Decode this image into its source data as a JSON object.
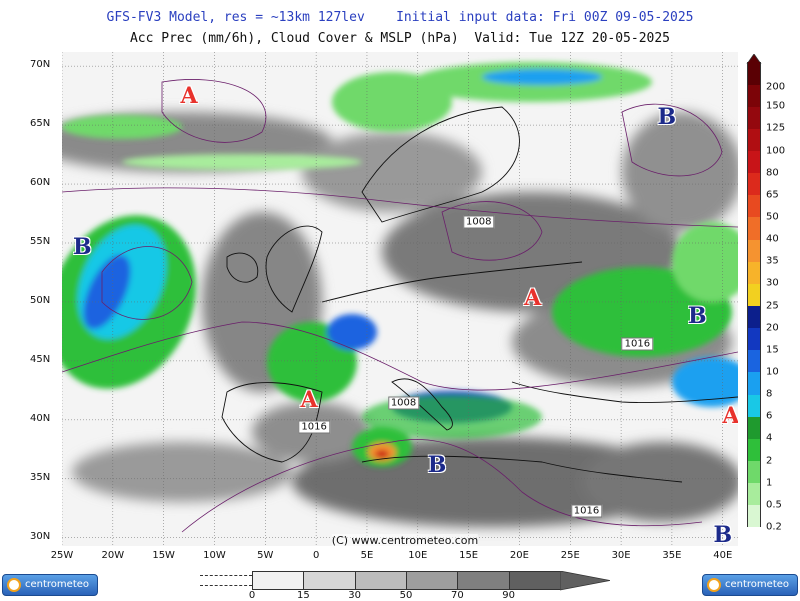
{
  "header": {
    "line1": "GFS-FV3 Model, res = ~13km 127lev    Initial input data: Fri 00Z 09-05-2025",
    "line2": "Acc Prec (mm/6h), Cloud Cover & MSLP (hPa)  Valid: Tue 12Z 20-05-2025"
  },
  "latitudes": [
    {
      "label": "70N",
      "lat": 70
    },
    {
      "label": "65N",
      "lat": 65
    },
    {
      "label": "60N",
      "lat": 60
    },
    {
      "label": "55N",
      "lat": 55
    },
    {
      "label": "50N",
      "lat": 50
    },
    {
      "label": "45N",
      "lat": 45
    },
    {
      "label": "40N",
      "lat": 40
    },
    {
      "label": "35N",
      "lat": 35
    },
    {
      "label": "30N",
      "lat": 30
    }
  ],
  "longitudes": [
    {
      "label": "25W",
      "lon": -25
    },
    {
      "label": "20W",
      "lon": -20
    },
    {
      "label": "15W",
      "lon": -15
    },
    {
      "label": "10W",
      "lon": -10
    },
    {
      "label": "5W",
      "lon": -5
    },
    {
      "label": "0",
      "lon": 0
    },
    {
      "label": "5E",
      "lon": 5
    },
    {
      "label": "10E",
      "lon": 10
    },
    {
      "label": "15E",
      "lon": 15
    },
    {
      "label": "20E",
      "lon": 20
    },
    {
      "label": "25E",
      "lon": 25
    },
    {
      "label": "30E",
      "lon": 30
    },
    {
      "label": "35E",
      "lon": 35
    },
    {
      "label": "40E",
      "lon": 40
    }
  ],
  "pressure_centers": [
    {
      "type": "A",
      "lon": -12.5,
      "lat": 67.5
    },
    {
      "type": "B",
      "lon": 34.5,
      "lat": 65.7
    },
    {
      "type": "B",
      "lon": -23,
      "lat": 54.7
    },
    {
      "type": "A",
      "lon": 21.3,
      "lat": 50.3
    },
    {
      "type": "B",
      "lon": 37.5,
      "lat": 48.8
    },
    {
      "type": "A",
      "lon": -0.7,
      "lat": 41.7
    },
    {
      "type": "A",
      "lon": 40.8,
      "lat": 40.3
    },
    {
      "type": "B",
      "lon": 11.9,
      "lat": 36.2
    },
    {
      "type": "B",
      "lon": 40,
      "lat": 30.2
    }
  ],
  "isobar_labels": [
    {
      "text": "1008",
      "lon": 16,
      "lat": 56.8
    },
    {
      "text": "1016",
      "lon": 31.6,
      "lat": 46.4
    },
    {
      "text": "1008",
      "lon": 8.6,
      "lat": 41.4
    },
    {
      "text": "1016",
      "lon": -0.2,
      "lat": 39.4
    },
    {
      "text": "1016",
      "lon": 26.6,
      "lat": 32.3
    }
  ],
  "copyright": "(C) www.centrometeo.com",
  "precip_scale": {
    "unit": "mm/6h",
    "levels": [
      {
        "label": "0.2",
        "color": "#d9f7d2"
      },
      {
        "label": "0.5",
        "color": "#a8ec9c"
      },
      {
        "label": "1",
        "color": "#6fd96a"
      },
      {
        "label": "2",
        "color": "#2fbf3a"
      },
      {
        "label": "4",
        "color": "#1f9a2e"
      },
      {
        "label": "6",
        "color": "#19c8e6"
      },
      {
        "label": "8",
        "color": "#1aa0f0"
      },
      {
        "label": "10",
        "color": "#1a64e0"
      },
      {
        "label": "15",
        "color": "#1238c0"
      },
      {
        "label": "20",
        "color": "#0c1f8c"
      },
      {
        "label": "25",
        "color": "#f2d020"
      },
      {
        "label": "30",
        "color": "#f7b32a"
      },
      {
        "label": "35",
        "color": "#f59330"
      },
      {
        "label": "40",
        "color": "#f06e28"
      },
      {
        "label": "50",
        "color": "#e84a20"
      },
      {
        "label": "65",
        "color": "#dc2a1c"
      },
      {
        "label": "80",
        "color": "#c81418"
      },
      {
        "label": "100",
        "color": "#b00e12"
      },
      {
        "label": "125",
        "color": "#94080e"
      },
      {
        "label": "150",
        "color": "#7c0408"
      },
      {
        "label": "200",
        "color": "#5a0004"
      }
    ]
  },
  "cloud_scale": {
    "labels": [
      "0",
      "15",
      "30",
      "50",
      "70",
      "90"
    ],
    "colors": [
      "#f2f2f2",
      "#d6d6d6",
      "#bcbcbc",
      "#9e9e9e",
      "#7f7f7f",
      "#606060"
    ]
  },
  "logos": {
    "left": "centrometeo",
    "right": "centrometeo"
  }
}
